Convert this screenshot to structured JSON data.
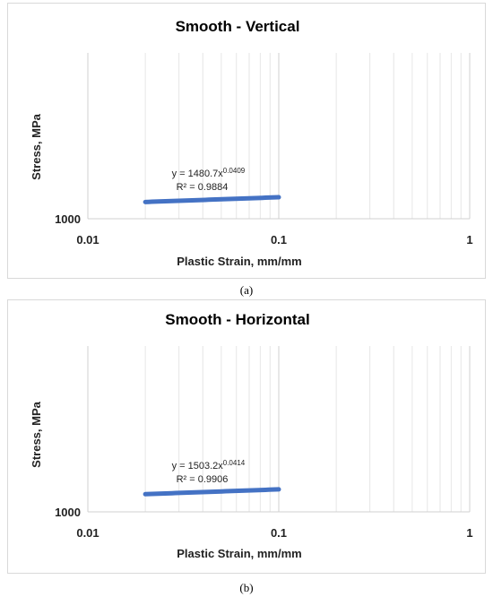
{
  "chart_data": [
    {
      "type": "line",
      "panel_caption": "(a)",
      "title": "Smooth - Vertical",
      "xlabel": "Plastic Strain, mm/mm",
      "ylabel": "Stress, MPa",
      "x_scale": "log",
      "y_scale": "log",
      "xlim": [
        0.01,
        1
      ],
      "ylim": [
        1000,
        10000
      ],
      "x_ticks": [
        "0.01",
        "0.1",
        "1"
      ],
      "y_ticks": [
        "1000"
      ],
      "grid": "vertical minor",
      "legend": "none",
      "series_color": "#4472c4",
      "fit": {
        "coefficient": 1480.7,
        "exponent": 0.0409,
        "equation": "y = 1480.7x",
        "exponent_label": "0.0409",
        "r2_label": "R² = 0.9884"
      },
      "series": [
        {
          "x": [
            0.02,
            0.1
          ]
        }
      ]
    },
    {
      "type": "line",
      "panel_caption": "(b)",
      "title": "Smooth - Horizontal",
      "xlabel": "Plastic Strain, mm/mm",
      "ylabel": "Stress, MPa",
      "x_scale": "log",
      "y_scale": "log",
      "xlim": [
        0.01,
        1
      ],
      "ylim": [
        1000,
        10000
      ],
      "x_ticks": [
        "0.01",
        "0.1",
        "1"
      ],
      "y_ticks": [
        "1000"
      ],
      "grid": "vertical minor",
      "legend": "none",
      "series_color": "#4472c4",
      "fit": {
        "coefficient": 1503.2,
        "exponent": 0.0414,
        "equation": "y = 1503.2x",
        "exponent_label": "0.0414",
        "r2_label": "R² = 0.9906"
      },
      "series": [
        {
          "x": [
            0.02,
            0.1
          ]
        }
      ]
    }
  ]
}
